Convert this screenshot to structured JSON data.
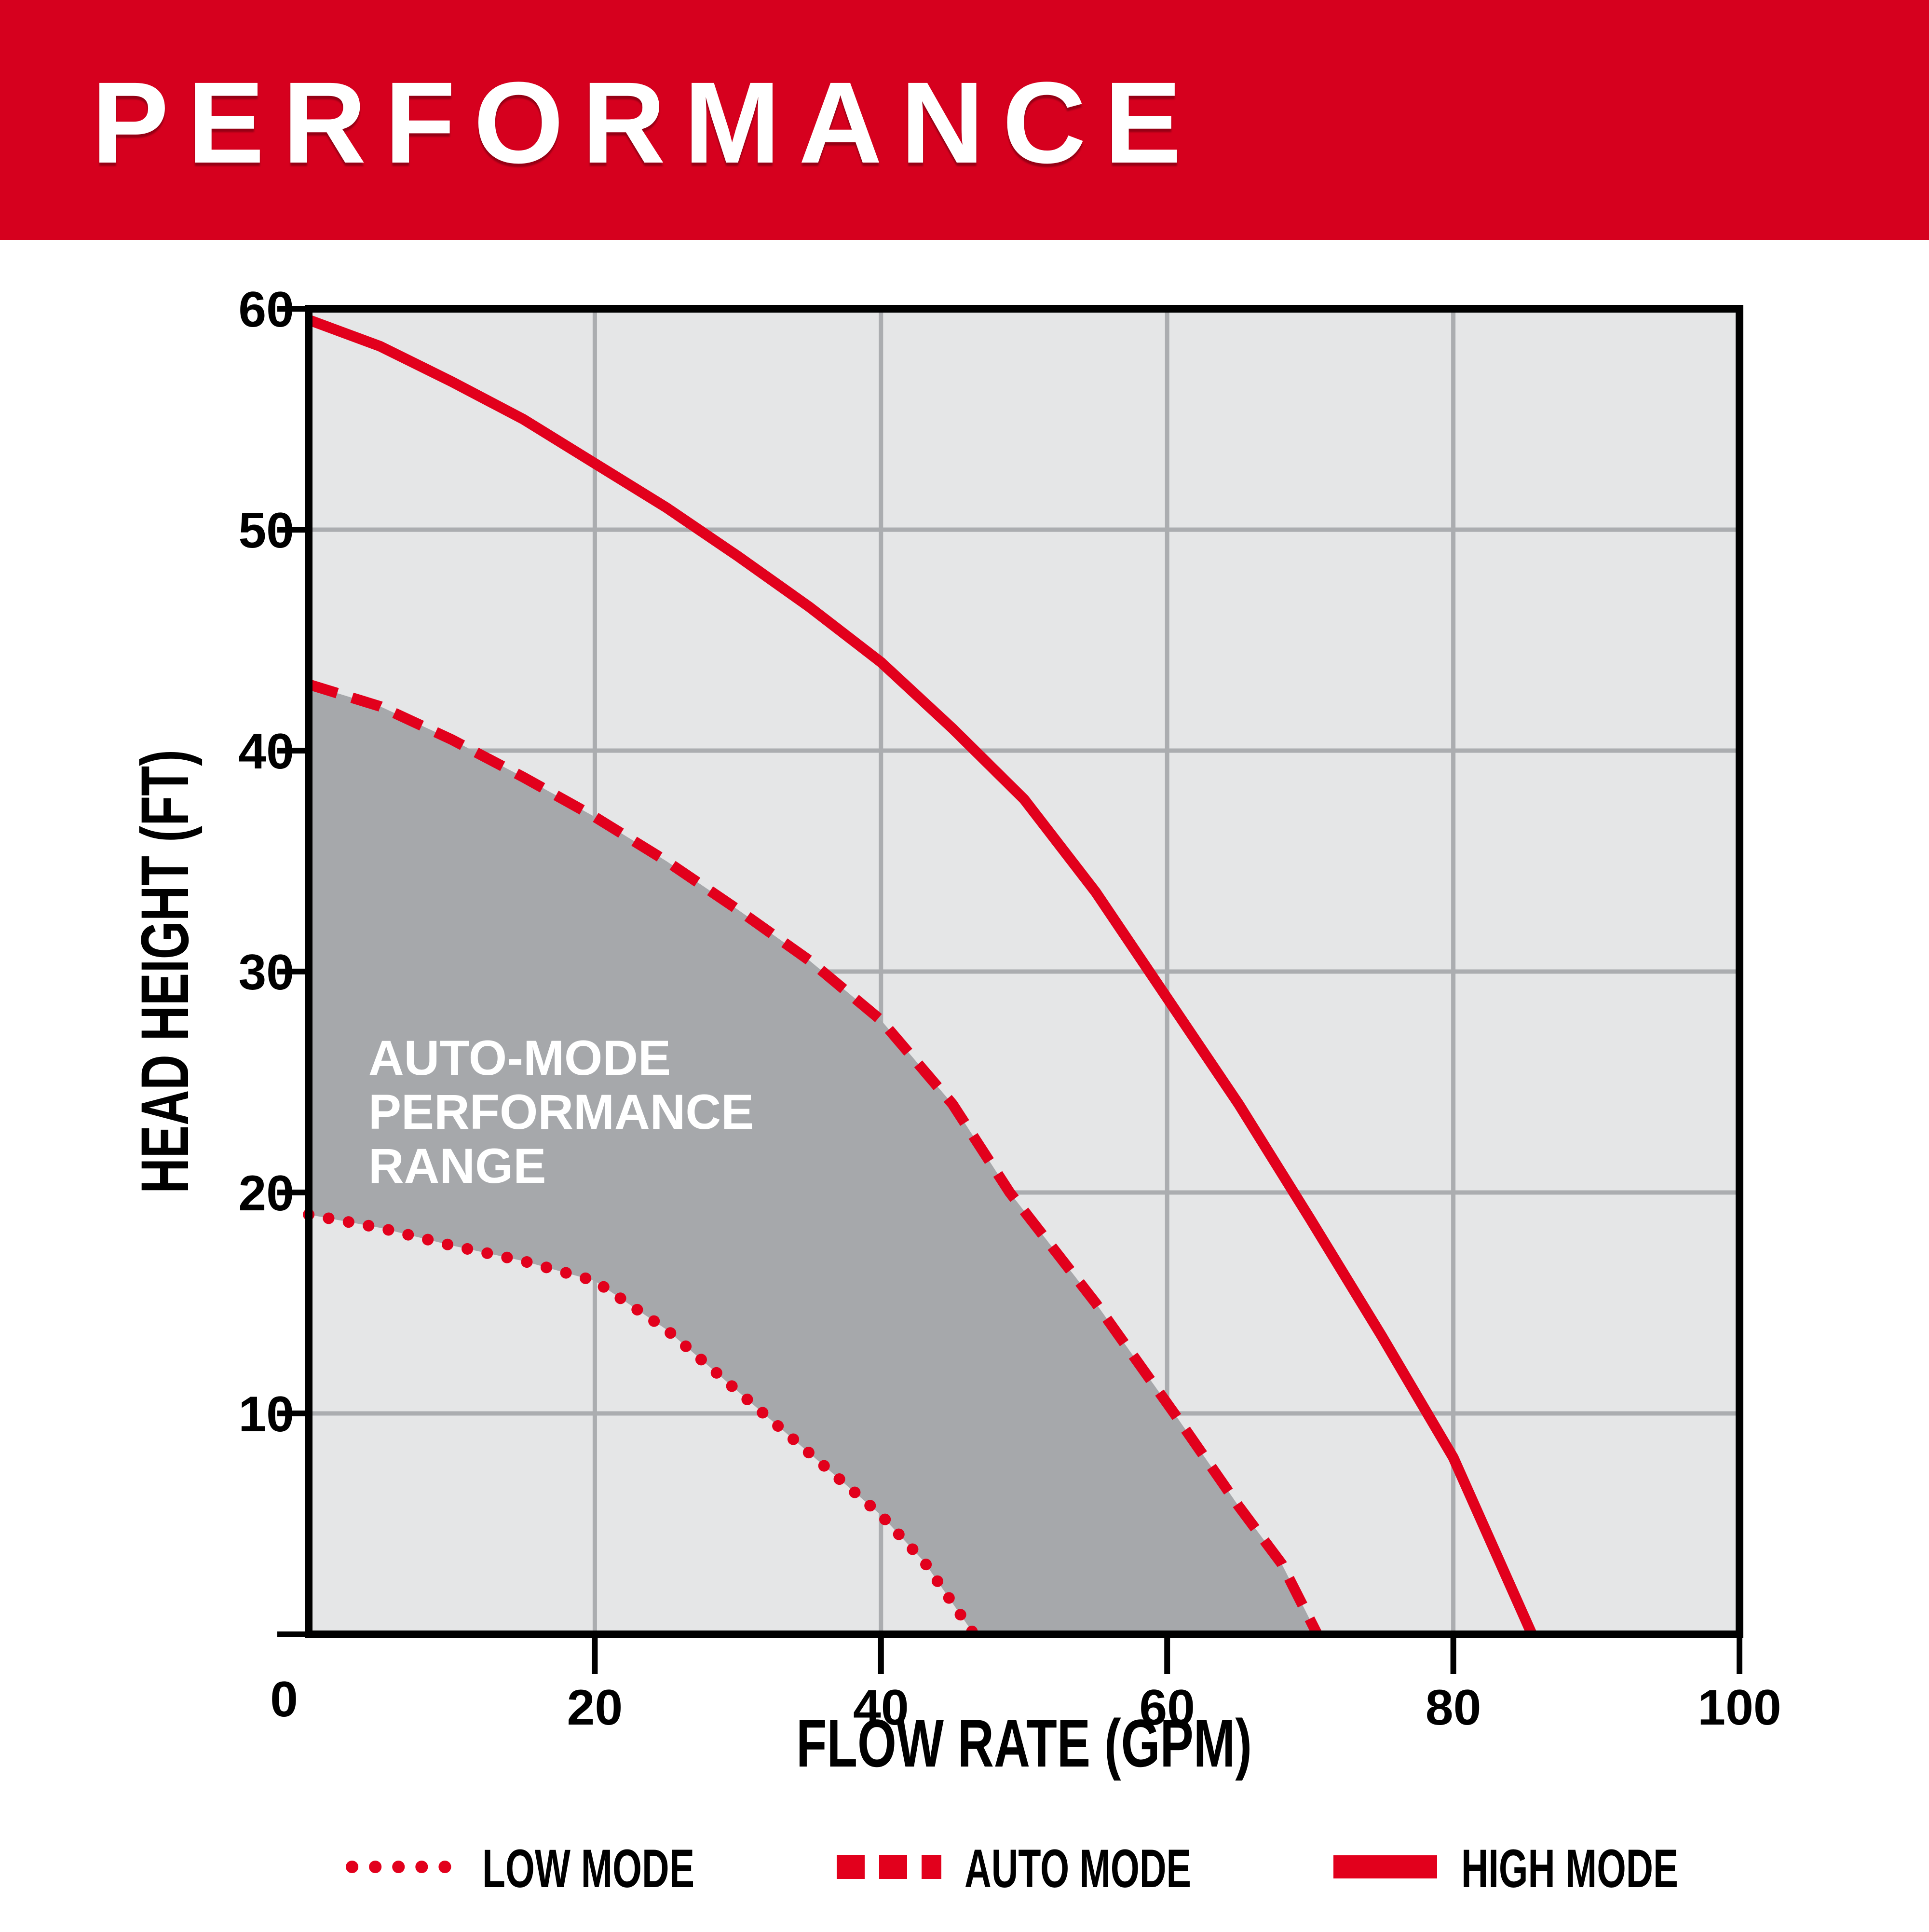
{
  "banner": {
    "title": "PERFORMANCE",
    "bg_color": "#D6001E",
    "text_color": "#FFFFFF"
  },
  "chart_data": {
    "type": "line",
    "title": "",
    "xlabel": "FLOW RATE (GPM)",
    "ylabel": "HEAD HEIGHT (FT)",
    "xlim": [
      0,
      100
    ],
    "ylim": [
      0,
      60
    ],
    "xticks": [
      20,
      40,
      60,
      80,
      100
    ],
    "yticks": [
      0,
      10,
      20,
      30,
      40,
      50,
      60
    ],
    "origin_label": "0",
    "grid": true,
    "legend_position": "bottom",
    "colors": {
      "plot_bg": "#E5E6E7",
      "grid": "#ABADB0",
      "band": "#A6A8AB",
      "curve": "#E2001C",
      "axis": "#000000",
      "tick_text": "#000000",
      "area_label_text": "#FFFFFF"
    },
    "series": [
      {
        "name": "LOW MODE",
        "style": "dotted",
        "points": [
          [
            0,
            19
          ],
          [
            5,
            18.4
          ],
          [
            10,
            17.6
          ],
          [
            15,
            16.9
          ],
          [
            20,
            16
          ],
          [
            25,
            13.8
          ],
          [
            30,
            11
          ],
          [
            35,
            8.2
          ],
          [
            40,
            5.4
          ],
          [
            43,
            3.3
          ],
          [
            46.5,
            0
          ]
        ]
      },
      {
        "name": "AUTO MODE",
        "style": "dashed",
        "points": [
          [
            0,
            43
          ],
          [
            5,
            42
          ],
          [
            10,
            40.5
          ],
          [
            15,
            38.8
          ],
          [
            20,
            37
          ],
          [
            25,
            35
          ],
          [
            30,
            32.8
          ],
          [
            35,
            30.5
          ],
          [
            40,
            27.8
          ],
          [
            45,
            24
          ],
          [
            49,
            20
          ],
          [
            55,
            15
          ],
          [
            60.5,
            10
          ],
          [
            65,
            5.8
          ],
          [
            68,
            3.2
          ],
          [
            70.5,
            0
          ]
        ]
      },
      {
        "name": "HIGH MODE",
        "style": "solid",
        "points": [
          [
            0,
            59.5
          ],
          [
            5,
            58.3
          ],
          [
            10,
            56.7
          ],
          [
            15,
            55
          ],
          [
            20,
            53
          ],
          [
            25,
            51
          ],
          [
            30,
            48.8
          ],
          [
            35,
            46.5
          ],
          [
            40,
            44
          ],
          [
            45,
            41
          ],
          [
            50,
            37.8
          ],
          [
            55,
            33.6
          ],
          [
            60,
            28.8
          ],
          [
            65,
            24
          ],
          [
            70,
            18.8
          ],
          [
            75,
            13.5
          ],
          [
            80,
            8
          ],
          [
            85.5,
            0
          ]
        ]
      }
    ],
    "band_between": [
      "LOW MODE",
      "AUTO MODE"
    ],
    "area_label": {
      "lines": [
        "AUTO-MODE",
        "PERFORMANCE",
        "RANGE"
      ]
    }
  },
  "legend": {
    "items": [
      {
        "label": "LOW MODE",
        "style": "dotted"
      },
      {
        "label": "AUTO MODE",
        "style": "dashed"
      },
      {
        "label": "HIGH MODE",
        "style": "solid"
      }
    ]
  }
}
